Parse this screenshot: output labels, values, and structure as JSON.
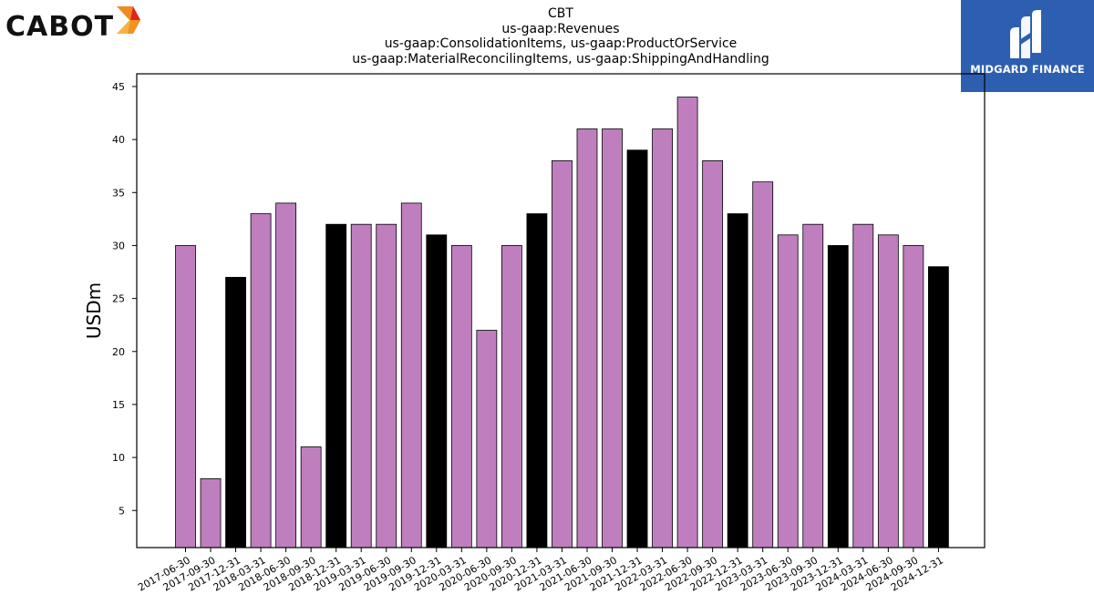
{
  "company_logo": {
    "text": "CABOT"
  },
  "badge": {
    "text": "MIDGARD FINANCE",
    "color": "#2d5fb0"
  },
  "chart_data": {
    "type": "bar",
    "title_lines": [
      "CBT",
      "us-gaap:Revenues",
      "us-gaap:ConsolidationItems, us-gaap:ProductOrService",
      "us-gaap:MaterialReconcilingItems, us-gaap:ShippingAndHandling"
    ],
    "xlabel": "",
    "ylabel": "USDm",
    "ylim": [
      1.5,
      46.2
    ],
    "yticks": [
      5,
      10,
      15,
      20,
      25,
      30,
      35,
      40,
      45
    ],
    "colors": {
      "quarter": "#bf7fbf",
      "year_end": "#000000"
    },
    "categories": [
      "2017-06-30",
      "2017-09-30",
      "2017-12-31",
      "2018-03-31",
      "2018-06-30",
      "2018-09-30",
      "2018-12-31",
      "2019-03-31",
      "2019-06-30",
      "2019-09-30",
      "2019-12-31",
      "2020-03-31",
      "2020-06-30",
      "2020-09-30",
      "2020-12-31",
      "2021-03-31",
      "2021-06-30",
      "2021-09-30",
      "2021-12-31",
      "2022-03-31",
      "2022-06-30",
      "2022-09-30",
      "2022-12-31",
      "2023-03-31",
      "2023-06-30",
      "2023-09-30",
      "2023-12-31",
      "2024-03-31",
      "2024-06-30",
      "2024-09-30",
      "2024-12-31"
    ],
    "values": [
      30,
      8,
      27,
      33,
      34,
      11,
      32,
      32,
      32,
      34,
      31,
      30,
      22,
      30,
      33,
      38,
      41,
      41,
      39,
      41,
      44,
      38,
      33,
      36,
      31,
      32,
      30,
      32,
      31,
      30,
      28
    ],
    "grid": false,
    "legend": "none"
  }
}
